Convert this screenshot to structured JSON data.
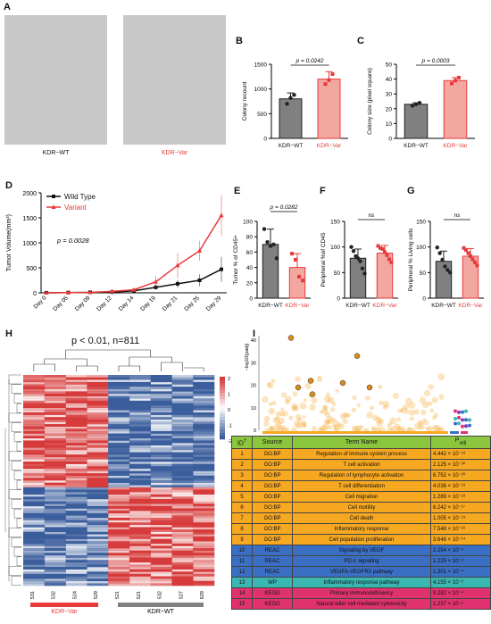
{
  "panels": {
    "A": {
      "label": "A",
      "left_caption": "KDR−WT",
      "right_caption": "KDR−Var"
    },
    "B": {
      "label": "B"
    },
    "C": {
      "label": "C"
    },
    "D": {
      "label": "D"
    },
    "E": {
      "label": "E"
    },
    "F": {
      "label": "F"
    },
    "G": {
      "label": "G"
    },
    "H": {
      "label": "H",
      "title": "p < 0.01, n=811",
      "group_left": "KDR−Var",
      "group_right": "KDR−WT",
      "samples": [
        "531",
        "532",
        "524",
        "529",
        "521",
        "521",
        "532",
        "527",
        "629"
      ],
      "scale_ticks": [
        "2",
        "1",
        "0",
        "-1",
        "-2"
      ]
    },
    "I": {
      "label": "I",
      "ylabel": "−log10(padj)",
      "yticks": [
        "40",
        "30",
        "20",
        "10",
        "0"
      ]
    }
  },
  "colors": {
    "wt": "#808080",
    "var": "#e83a3a",
    "var_fill": "#f2a7a0",
    "heat_red": "#d63a3a",
    "heat_blue": "#3a5d9c"
  },
  "chart_data": [
    {
      "id": "B",
      "type": "bar",
      "categories": [
        "KDR−WT",
        "KDR−Var"
      ],
      "values": [
        800,
        1200
      ],
      "errors": [
        120,
        150
      ],
      "points": [
        [
          700,
          820,
          880
        ],
        [
          1100,
          1180,
          1300
        ]
      ],
      "ylabel": "Colony recount",
      "ylim": [
        0,
        1500
      ],
      "yticks": [
        0,
        500,
        1000,
        1500
      ],
      "pvalue": "p = 0.0242"
    },
    {
      "id": "C",
      "type": "bar",
      "categories": [
        "KDR−WT",
        "KDR−Var"
      ],
      "values": [
        23,
        39
      ],
      "errors": [
        1,
        2
      ],
      "points": [
        [
          22,
          23,
          24
        ],
        [
          37,
          39,
          41
        ]
      ],
      "ylabel": "Colony size (pixel square)",
      "ylim": [
        0,
        50
      ],
      "yticks": [
        0,
        10,
        20,
        30,
        40,
        50
      ],
      "pvalue": "p = 0.0003"
    },
    {
      "id": "D",
      "type": "line",
      "categories": [
        "Day 0",
        "Day 05",
        "Day 09",
        "Day 12",
        "Day 14",
        "Day 19",
        "Day 21",
        "Day 25",
        "Day 29"
      ],
      "series": [
        {
          "name": "Wild Type",
          "values": [
            0,
            5,
            10,
            15,
            40,
            110,
            180,
            250,
            470
          ],
          "errors": [
            0,
            5,
            10,
            10,
            20,
            50,
            80,
            120,
            250
          ]
        },
        {
          "name": "Variant",
          "values": [
            0,
            5,
            10,
            30,
            60,
            220,
            550,
            840,
            1550
          ],
          "errors": [
            0,
            5,
            10,
            15,
            30,
            120,
            250,
            200,
            400
          ]
        }
      ],
      "ylabel": "Tumor Volume(mm³)",
      "ylim": [
        0,
        2000
      ],
      "yticks": [
        0,
        500,
        1000,
        1500,
        2000
      ],
      "pvalue": "p = 0.0028"
    },
    {
      "id": "E",
      "type": "bar",
      "categories": [
        "KDR−WT",
        "KDR−Var"
      ],
      "values": [
        70,
        40
      ],
      "errors": [
        20,
        18
      ],
      "points": [
        [
          90,
          73,
          68,
          70,
          52
        ],
        [
          58,
          50,
          28,
          23
        ]
      ],
      "ylabel": "Tumor % of CD45+",
      "ylim": [
        0,
        100
      ],
      "yticks": [
        0,
        20,
        40,
        60,
        80,
        100
      ],
      "pvalue": "p = 0.0282"
    },
    {
      "id": "F",
      "type": "bar",
      "categories": [
        "KDR−WT",
        "KDR−Var"
      ],
      "values": [
        78,
        88
      ],
      "errors": [
        18,
        15
      ],
      "points": [
        [
          100,
          92,
          82,
          78,
          72,
          58,
          48
        ],
        [
          102,
          98,
          96,
          90,
          84,
          76,
          70
        ]
      ],
      "ylabel": "Peripheral %of CD45",
      "ylim": [
        0,
        150
      ],
      "yticks": [
        0,
        50,
        100,
        150
      ],
      "pvalue": "ns"
    },
    {
      "id": "G",
      "type": "bar",
      "categories": [
        "KDR−WT",
        "KDR−Var"
      ],
      "values": [
        72,
        82
      ],
      "errors": [
        20,
        15
      ],
      "points": [
        [
          99,
          88,
          75,
          62,
          55,
          50
        ],
        [
          98,
          94,
          88,
          82,
          76,
          70,
          64
        ]
      ],
      "ylabel": "Peripheral % Living cells",
      "ylim": [
        0,
        150
      ],
      "yticks": [
        0,
        50,
        100,
        150
      ],
      "pvalue": "ns"
    },
    {
      "id": "I",
      "type": "table",
      "columns": [
        "ID",
        "Source",
        "Term Name",
        "Padj"
      ],
      "rows": [
        {
          "id": "1",
          "source": "GO:BP",
          "term": "Regulation of immune system process",
          "padj": "4.442 × 10⁻⁴¹",
          "cat": "gobp"
        },
        {
          "id": "2",
          "source": "GO:BP",
          "term": "T cell activation",
          "padj": "2.125 × 10⁻³⁰",
          "cat": "gobp"
        },
        {
          "id": "3",
          "source": "GO:BP",
          "term": "Regulation of lymphocyte activation",
          "padj": "6.752 × 10⁻²⁰",
          "cat": "gobp"
        },
        {
          "id": "4",
          "source": "GO:BP",
          "term": "T cell differentiation",
          "padj": "4.036 × 10⁻¹⁹",
          "cat": "gobp"
        },
        {
          "id": "5",
          "source": "GO:BP",
          "term": "Cell migration",
          "padj": "1.289 × 10⁻¹⁸",
          "cat": "gobp"
        },
        {
          "id": "6",
          "source": "GO:BP",
          "term": "Cell motility",
          "padj": "6.242 × 10⁻¹⁷",
          "cat": "gobp"
        },
        {
          "id": "7",
          "source": "GO:BP",
          "term": "Cell death",
          "padj": "1.005 × 10⁻¹⁵",
          "cat": "gobp"
        },
        {
          "id": "8",
          "source": "GO:BP",
          "term": "Inflammatory response",
          "padj": "7.548 × 10⁻¹⁶",
          "cat": "gobp"
        },
        {
          "id": "9",
          "source": "GO:BP",
          "term": "Cell population proliferation",
          "padj": "3.646 × 10⁻¹⁴",
          "cat": "gobp"
        },
        {
          "id": "10",
          "source": "REAC",
          "term": "Signaling by VEGF",
          "padj": "2.254 × 10⁻⁵",
          "cat": "reac"
        },
        {
          "id": "11",
          "source": "REAC",
          "term": "PD-1 signaling",
          "padj": "1.225 × 10⁻⁵",
          "cat": "reac"
        },
        {
          "id": "12",
          "source": "REAC",
          "term": "VEGFA-VEGFR2 pathway",
          "padj": "1.301 × 10⁻⁴",
          "cat": "reac"
        },
        {
          "id": "13",
          "source": "WP",
          "term": "Inflammatory response pathway",
          "padj": "4.155 × 10⁻²",
          "cat": "wp"
        },
        {
          "id": "14",
          "source": "KEGG",
          "term": "Primary immunodeficiency",
          "padj": "9.282 × 10⁻⁴",
          "cat": "kegg"
        },
        {
          "id": "15",
          "source": "KEGG",
          "term": "Natural killer cell mediated cytotoxicity",
          "padj": "1.237 × 10⁻²",
          "cat": "kegg"
        }
      ]
    }
  ],
  "table_colors": {
    "gobp": "#f7a821",
    "reac": "#3a6fc4",
    "wp": "#3ab7b0",
    "kegg": "#e0326e"
  }
}
